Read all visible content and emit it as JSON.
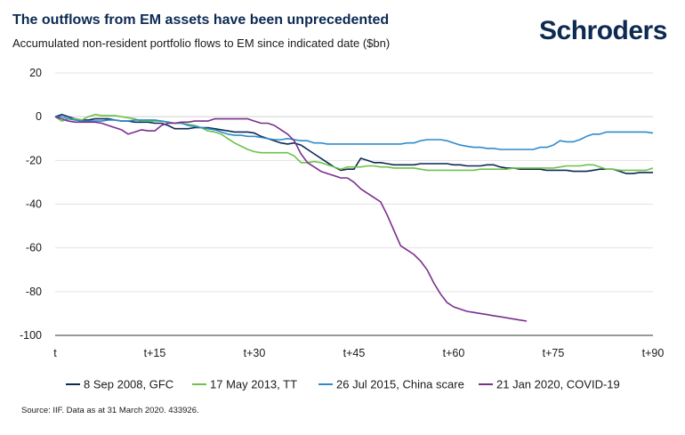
{
  "title": "The outflows from EM assets have been unprecedented",
  "subtitle": "Accumulated non-resident portfolio flows to EM since indicated date ($bn)",
  "logo": "Schroders",
  "source": "Source: IIF. Data as at 31 March 2020. 433926.",
  "colors": {
    "gfc": "#0c2a52",
    "tt": "#6cc24a",
    "china": "#2e8bc9",
    "covid": "#7b2f8c",
    "grid": "#e3e3e3",
    "axis": "#333333"
  },
  "chart_data": {
    "type": "line",
    "title": "The outflows from EM assets have been unprecedented",
    "ylabel": "Accumulated non-resident portfolio flows to EM since indicated date ($bn)",
    "xlabel": "",
    "xlim": [
      0,
      90
    ],
    "ylim": [
      -100,
      20
    ],
    "yticks": [
      20,
      0,
      -20,
      -40,
      -60,
      -80,
      -100
    ],
    "xticks": [
      {
        "value": 0,
        "label": "t"
      },
      {
        "value": 15,
        "label": "t+15"
      },
      {
        "value": 30,
        "label": "t+30"
      },
      {
        "value": 45,
        "label": "t+45"
      },
      {
        "value": 60,
        "label": "t+60"
      },
      {
        "value": 75,
        "label": "t+75"
      },
      {
        "value": 90,
        "label": "t+90"
      }
    ],
    "grid": true,
    "legend_position": "bottom",
    "series": [
      {
        "name": "8 Sep 2008, GFC",
        "color_key": "gfc",
        "x": [
          0,
          1,
          2,
          3,
          4,
          5,
          6,
          7,
          8,
          9,
          10,
          11,
          12,
          13,
          14,
          15,
          16,
          17,
          18,
          19,
          20,
          21,
          22,
          23,
          24,
          25,
          26,
          27,
          28,
          29,
          30,
          31,
          32,
          33,
          34,
          35,
          36,
          37,
          38,
          39,
          40,
          41,
          42,
          43,
          44,
          45,
          46,
          47,
          48,
          49,
          50,
          51,
          52,
          53,
          54,
          55,
          56,
          57,
          58,
          59,
          60,
          61,
          62,
          63,
          64,
          65,
          66,
          67,
          68,
          69,
          70,
          71,
          72,
          73,
          74,
          75,
          76,
          77,
          78,
          79,
          80,
          81,
          82,
          83,
          84,
          85,
          86,
          87,
          88,
          89,
          90
        ],
        "y": [
          0,
          1,
          0,
          -1,
          -1.5,
          -1.5,
          -1,
          -1,
          -1,
          -1.5,
          -2,
          -2,
          -2.5,
          -2.5,
          -2.5,
          -3,
          -3,
          -4,
          -5.5,
          -5.5,
          -5.5,
          -5,
          -5,
          -5,
          -5.5,
          -6,
          -6.5,
          -7,
          -7,
          -7,
          -7.5,
          -9,
          -10,
          -11,
          -12,
          -12.5,
          -12,
          -13,
          -15,
          -17,
          -19,
          -21,
          -23,
          -24.5,
          -24,
          -24,
          -19,
          -20,
          -21,
          -21,
          -21.5,
          -22,
          -22,
          -22,
          -22,
          -21.5,
          -21.5,
          -21.5,
          -21.5,
          -21.5,
          -22,
          -22,
          -22.5,
          -22.5,
          -22.5,
          -22,
          -22,
          -23,
          -23.5,
          -23.5,
          -24,
          -24,
          -24,
          -24,
          -24.5,
          -24.5,
          -24.5,
          -24.5,
          -25,
          -25,
          -25,
          -24.5,
          -24,
          -24,
          -24,
          -25,
          -26,
          -26,
          -25.5,
          -25.5,
          -25.5
        ]
      },
      {
        "name": "17 May 2013, TT",
        "color_key": "tt",
        "x": [
          0,
          1,
          2,
          3,
          4,
          5,
          6,
          7,
          8,
          9,
          10,
          11,
          12,
          13,
          14,
          15,
          16,
          17,
          18,
          19,
          20,
          21,
          22,
          23,
          24,
          25,
          26,
          27,
          28,
          29,
          30,
          31,
          32,
          33,
          34,
          35,
          36,
          37,
          38,
          39,
          40,
          41,
          42,
          43,
          44,
          45,
          46,
          47,
          48,
          49,
          50,
          51,
          52,
          53,
          54,
          55,
          56,
          57,
          58,
          59,
          60,
          61,
          62,
          63,
          64,
          65,
          66,
          67,
          68,
          69,
          70,
          71,
          72,
          73,
          74,
          75,
          76,
          77,
          78,
          79,
          80,
          81,
          82,
          83,
          84,
          85,
          86,
          87,
          88,
          89,
          90
        ],
        "y": [
          0,
          -2,
          -1,
          -1,
          -1.5,
          0,
          1,
          0.5,
          0.5,
          0.5,
          0,
          -0.5,
          -1,
          -2,
          -2,
          -2,
          -2,
          -2.5,
          -3,
          -3,
          -3.5,
          -4,
          -5,
          -6.5,
          -7,
          -8,
          -10,
          -12,
          -13.5,
          -15,
          -16,
          -16.5,
          -16.5,
          -16.5,
          -16.5,
          -16.5,
          -18,
          -21,
          -21,
          -20.5,
          -21,
          -22,
          -23,
          -24,
          -23,
          -23,
          -23,
          -22.5,
          -22.5,
          -23,
          -23,
          -23.5,
          -23.5,
          -23.5,
          -23.5,
          -24,
          -24.5,
          -24.5,
          -24.5,
          -24.5,
          -24.5,
          -24.5,
          -24.5,
          -24.5,
          -24,
          -24,
          -24,
          -24,
          -24,
          -23.5,
          -23.5,
          -23.5,
          -23.5,
          -23.5,
          -23.5,
          -23.5,
          -23,
          -22.5,
          -22.5,
          -22.5,
          -22,
          -22,
          -23,
          -24,
          -24,
          -24.5,
          -24.5,
          -24.5,
          -24.5,
          -24.5,
          -23.5
        ]
      },
      {
        "name": "26 Jul 2015, China scare",
        "color_key": "china",
        "x": [
          0,
          1,
          2,
          3,
          4,
          5,
          6,
          7,
          8,
          9,
          10,
          11,
          12,
          13,
          14,
          15,
          16,
          17,
          18,
          19,
          20,
          21,
          22,
          23,
          24,
          25,
          26,
          27,
          28,
          29,
          30,
          31,
          32,
          33,
          34,
          35,
          36,
          37,
          38,
          39,
          40,
          41,
          42,
          43,
          44,
          45,
          46,
          47,
          48,
          49,
          50,
          51,
          52,
          53,
          54,
          55,
          56,
          57,
          58,
          59,
          60,
          61,
          62,
          63,
          64,
          65,
          66,
          67,
          68,
          69,
          70,
          71,
          72,
          73,
          74,
          75,
          76,
          77,
          78,
          79,
          80,
          81,
          82,
          83,
          84,
          85,
          86,
          87,
          88,
          89,
          90
        ],
        "y": [
          0,
          0,
          -1,
          -1.5,
          -2,
          -2,
          -2,
          -2,
          -1.5,
          -1.5,
          -2,
          -2,
          -1.5,
          -1.5,
          -1.5,
          -1.5,
          -2,
          -2.5,
          -3,
          -3,
          -4,
          -4.5,
          -5,
          -5.5,
          -6,
          -7,
          -8,
          -8.5,
          -8.5,
          -9,
          -9,
          -9.5,
          -10,
          -10.5,
          -10.5,
          -10,
          -10.5,
          -11,
          -11,
          -12,
          -12,
          -12.5,
          -12.5,
          -12.5,
          -12.5,
          -12.5,
          -12.5,
          -12.5,
          -12.5,
          -12.5,
          -12.5,
          -12.5,
          -12.5,
          -12,
          -12,
          -11,
          -10.5,
          -10.5,
          -10.5,
          -11,
          -12,
          -13,
          -13.5,
          -14,
          -14,
          -14.5,
          -14.5,
          -15,
          -15,
          -15,
          -15,
          -15,
          -15,
          -14,
          -14,
          -13,
          -11,
          -11.5,
          -11.5,
          -10.5,
          -9,
          -8,
          -8,
          -7,
          -7,
          -7,
          -7,
          -7,
          -7,
          -7,
          -7.5
        ]
      },
      {
        "name": "21 Jan 2020, COVID-19",
        "color_key": "covid",
        "x": [
          0,
          1,
          2,
          3,
          4,
          5,
          6,
          7,
          8,
          9,
          10,
          11,
          12,
          13,
          14,
          15,
          16,
          17,
          18,
          19,
          20,
          21,
          22,
          23,
          24,
          25,
          26,
          27,
          28,
          29,
          30,
          31,
          32,
          33,
          34,
          35,
          36,
          37,
          38,
          39,
          40,
          41,
          42,
          43,
          44,
          45,
          46,
          47,
          48,
          49,
          50,
          51,
          52,
          53,
          54,
          55,
          56,
          57,
          58,
          59,
          60,
          61,
          62,
          63,
          64,
          65,
          66,
          67,
          68,
          69,
          70,
          71
        ],
        "y": [
          0,
          -1,
          -2,
          -2.5,
          -2.5,
          -2.5,
          -2.5,
          -3,
          -4,
          -5,
          -6,
          -8,
          -7,
          -6,
          -6.5,
          -6.5,
          -4,
          -3,
          -3,
          -2.5,
          -2.5,
          -2,
          -2,
          -2,
          -1,
          -1,
          -1,
          -1,
          -1,
          -1,
          -2,
          -3,
          -3,
          -4,
          -6,
          -8,
          -11,
          -17,
          -21,
          -23,
          -25,
          -26,
          -27,
          -28,
          -28,
          -30,
          -33,
          -35,
          -37,
          -39,
          -45,
          -52,
          -59,
          -61,
          -63,
          -66,
          -70,
          -76,
          -81,
          -85,
          -87,
          -88,
          -89,
          -89.5,
          -90,
          -90.5,
          -91,
          -91.5,
          -92,
          -92.5,
          -93,
          -93.5
        ]
      }
    ]
  }
}
